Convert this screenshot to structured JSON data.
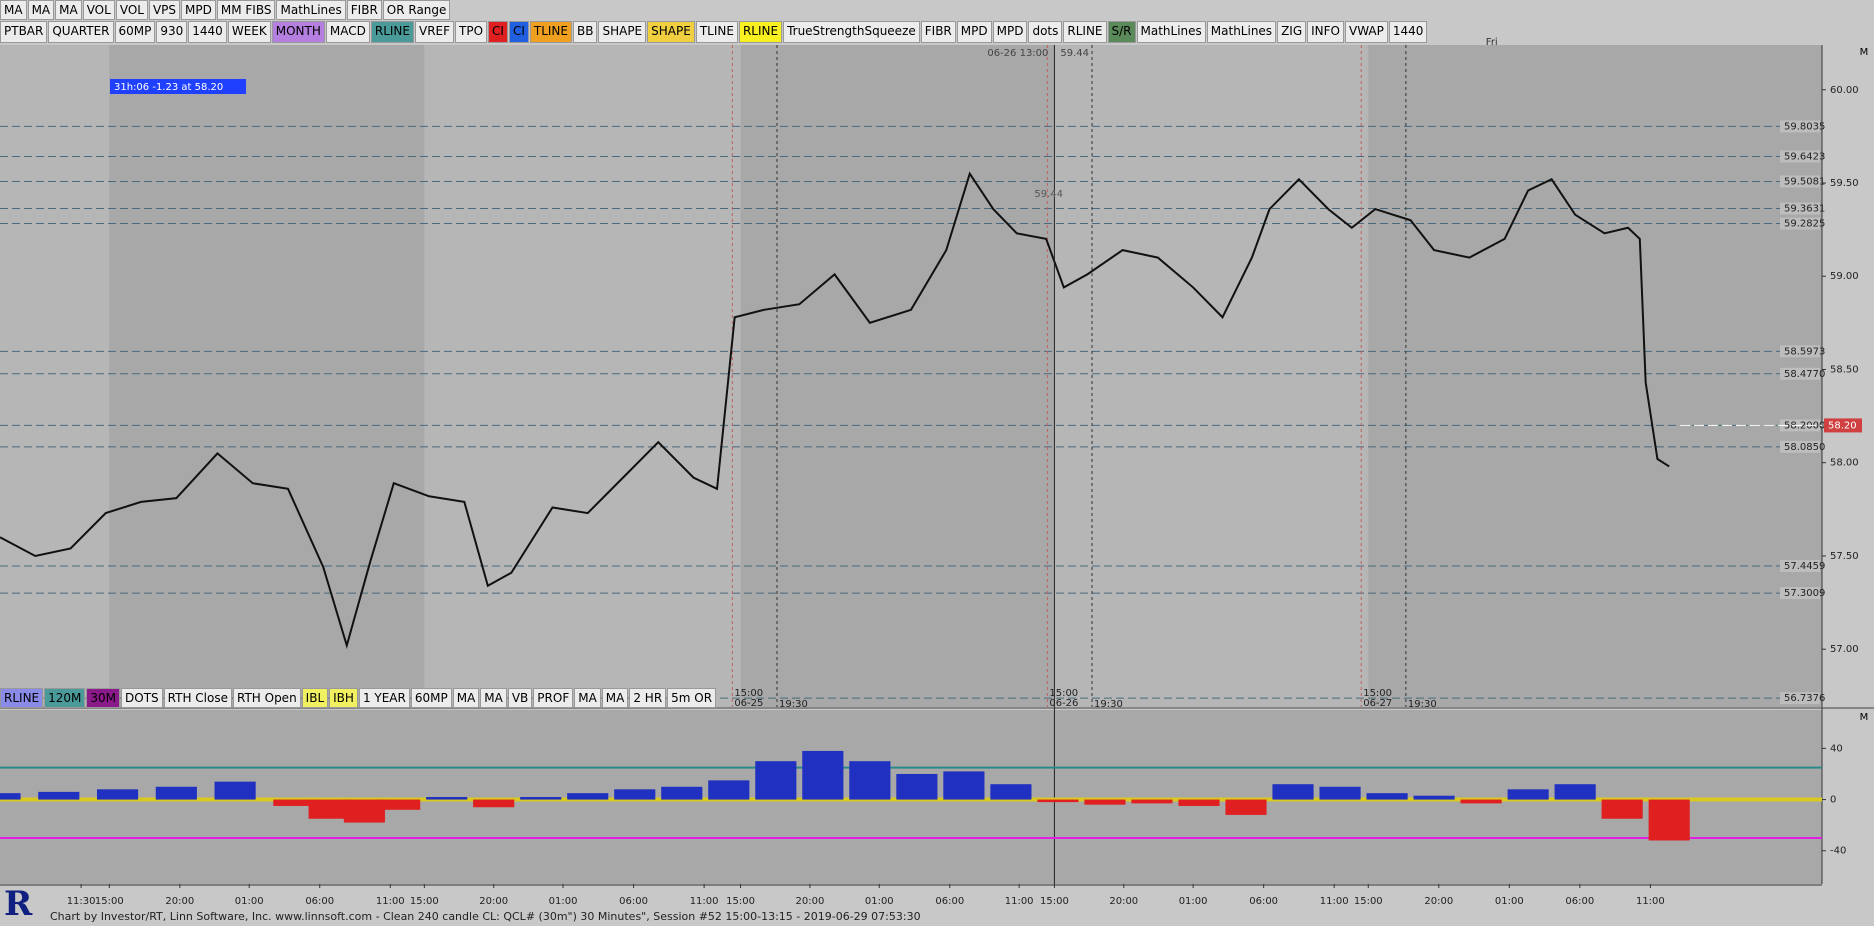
{
  "toolbar_top": [
    "MA",
    "MA",
    "MA",
    "VOL",
    "VOL",
    "VPS",
    "MPD",
    "MM FIBS",
    "MathLines",
    "FIBR",
    "OR Range"
  ],
  "toolbar_main": [
    {
      "label": "PTBAR"
    },
    {
      "label": "QUARTER"
    },
    {
      "label": "60MP"
    },
    {
      "label": "930"
    },
    {
      "label": "1440"
    },
    {
      "label": "WEEK"
    },
    {
      "label": "MONTH",
      "bg": "#b57fe0"
    },
    {
      "label": "MACD"
    },
    {
      "label": "RLINE",
      "bg": "#4a9a9a"
    },
    {
      "label": "VREF"
    },
    {
      "label": "TPO"
    },
    {
      "label": "CI",
      "bg": "#e02020"
    },
    {
      "label": "CI",
      "bg": "#2060e0"
    },
    {
      "label": "TLINE",
      "bg": "#f0a020"
    },
    {
      "label": "BB"
    },
    {
      "label": "SHAPE"
    },
    {
      "label": "SHAPE",
      "bg": "#f0d040"
    },
    {
      "label": "TLINE"
    },
    {
      "label": "RLINE",
      "bg": "#f8f020"
    },
    {
      "label": "TrueStrengthSqueeze"
    },
    {
      "label": "FIBR"
    },
    {
      "label": "MPD"
    },
    {
      "label": "MPD"
    },
    {
      "label": "dots"
    },
    {
      "label": "RLINE"
    },
    {
      "label": "S/R",
      "bg": "#5a8a5a"
    },
    {
      "label": "MathLines"
    },
    {
      "label": "MathLines"
    },
    {
      "label": "ZIG"
    },
    {
      "label": "INFO"
    },
    {
      "label": "VWAP"
    },
    {
      "label": "1440"
    }
  ],
  "toolbar_bottom": [
    {
      "label": "RLINE",
      "bg": "#8a8ae8"
    },
    {
      "label": "120M",
      "bg": "#4a9a9a"
    },
    {
      "label": "30M",
      "bg": "#8a1a8a"
    },
    {
      "label": "DOTS"
    },
    {
      "label": "RTH Close"
    },
    {
      "label": "RTH Open"
    },
    {
      "label": "IBL",
      "bg": "#f0f060"
    },
    {
      "label": "IBH",
      "bg": "#f0f060"
    },
    {
      "label": "1 YEAR"
    },
    {
      "label": "60MP"
    },
    {
      "label": "MA"
    },
    {
      "label": "MA"
    },
    {
      "label": "VB"
    },
    {
      "label": "PROF"
    },
    {
      "label": "MA"
    },
    {
      "label": "MA"
    },
    {
      "label": "2 HR"
    },
    {
      "label": "5m OR"
    }
  ],
  "info_box": "31h:06  -1.23 at 58.20",
  "pane_label": "M",
  "footer": "Chart by Investor/RT, Linn Software, Inc. www.linnsoft.com - Clean 240 candle CL: QCL# (30m\") 30 Minutes\", Session #52 15:00-13:15 - 2019-06-29 07:53:30",
  "chart_data": [
    {
      "type": "line",
      "color": "#111111",
      "x": [
        0,
        3,
        6,
        9,
        12,
        15,
        18.5,
        21.5,
        24.5,
        27.5,
        29.5,
        31.5,
        33.5,
        36.5,
        39.5,
        41.5,
        43.5,
        47,
        50,
        53,
        56,
        59,
        61,
        62.5,
        65,
        68,
        71,
        74,
        77.5,
        80.5,
        82.5,
        84.5,
        86.5,
        89,
        90.5,
        92.5,
        95.5,
        98.5,
        101.5,
        104,
        106.5,
        108,
        110.5,
        113,
        115,
        117,
        120,
        122,
        125,
        128,
        130,
        132,
        134,
        136.5,
        138.5,
        139.5,
        140,
        141,
        142
      ],
      "values": [
        57.6,
        57.5,
        57.54,
        57.73,
        57.79,
        57.81,
        58.05,
        57.89,
        57.86,
        57.44,
        57.02,
        57.47,
        57.89,
        57.82,
        57.79,
        57.34,
        57.41,
        57.76,
        57.73,
        57.92,
        58.11,
        57.92,
        57.86,
        58.78,
        58.82,
        58.85,
        59.01,
        58.75,
        58.82,
        59.14,
        59.55,
        59.36,
        59.23,
        59.2,
        58.94,
        59.01,
        59.14,
        59.1,
        58.94,
        58.78,
        59.1,
        59.36,
        59.52,
        59.36,
        59.26,
        59.36,
        59.3,
        59.14,
        59.1,
        59.2,
        59.46,
        59.52,
        59.33,
        59.23,
        59.26,
        59.2,
        58.43,
        58.02,
        57.98
      ],
      "xlim": [
        0,
        155
      ],
      "ylim": [
        56.69,
        60.24
      ],
      "yticks": [
        {
          "value": 60,
          "label": "60.00"
        },
        {
          "value": 59.5,
          "label": "59.50"
        },
        {
          "value": 59,
          "label": "59.00"
        },
        {
          "value": 58.5,
          "label": "58.50"
        },
        {
          "value": 58,
          "label": "58.00"
        },
        {
          "value": 57.5,
          "label": "57.50"
        },
        {
          "value": 57,
          "label": "57.00"
        }
      ],
      "levels": [
        59.8035,
        59.6423,
        59.5081,
        59.3631,
        59.2825,
        58.5973,
        {
          "value": 58.477,
          "label": "58.4770"
        },
        {
          "value": 58.2,
          "label": "58.2000"
        },
        {
          "value": 58.085,
          "label": "58.0850"
        },
        57.4459,
        57.3009,
        56.7376
      ],
      "current": {
        "value": 58.2,
        "label": "58.20"
      },
      "crosshair": {
        "x": 89.7,
        "value": 59.44,
        "label": "06-26 13:00"
      },
      "sessions": [
        {
          "x": 62.3,
          "label": "15:00",
          "date": "06-25"
        },
        {
          "x": 66.1,
          "label": "19:30"
        },
        {
          "x": 89.1,
          "label": "15:00",
          "date": "06-26"
        },
        {
          "x": 92.9,
          "label": "19:30"
        },
        {
          "x": 115.8,
          "label": "15:00",
          "date": "06-27"
        },
        {
          "x": 119.6,
          "label": "19:30"
        }
      ],
      "day_label": {
        "x": 126.4,
        "label": "Fri"
      }
    },
    {
      "type": "bar",
      "color_up": "#2030c0",
      "color_down": "#e02020",
      "x": [
        0,
        5,
        10,
        15,
        20,
        25,
        28,
        31,
        34,
        38,
        42,
        46,
        50,
        54,
        58,
        62,
        66,
        70,
        74,
        78,
        82,
        86,
        90,
        94,
        98,
        102,
        106,
        110,
        114,
        118,
        122,
        126,
        130,
        134,
        138,
        142
      ],
      "values": [
        5,
        6,
        8,
        10,
        14,
        -5,
        -15,
        -18,
        -8,
        2,
        -6,
        2,
        5,
        8,
        10,
        15,
        30,
        38,
        30,
        20,
        22,
        12,
        -2,
        -4,
        -3,
        -5,
        -12,
        12,
        10,
        5,
        3,
        -3,
        8,
        12,
        -15,
        -32
      ],
      "xlim": [
        0,
        155
      ],
      "ylim": [
        -66,
        70
      ],
      "yticks": [
        40,
        0,
        -40
      ],
      "xticks": [
        {
          "value": 6.9,
          "label": "11:30"
        },
        {
          "value": 9.3,
          "label": "15:00"
        },
        {
          "value": 15.3,
          "label": "20:00"
        },
        {
          "value": 21.2,
          "label": "01:00"
        },
        {
          "value": 27.2,
          "label": "06:00"
        },
        {
          "value": 33.2,
          "label": "11:00"
        },
        {
          "value": 36.1,
          "label": "15:00"
        },
        {
          "value": 42,
          "label": "20:00"
        },
        {
          "value": 47.9,
          "label": "01:00"
        },
        {
          "value": 53.9,
          "label": "06:00"
        },
        {
          "value": 59.9,
          "label": "11:00"
        },
        {
          "value": 63,
          "label": "15:00"
        },
        {
          "value": 68.9,
          "label": "20:00"
        },
        {
          "value": 74.8,
          "label": "01:00"
        },
        {
          "value": 80.8,
          "label": "06:00"
        },
        {
          "value": 86.7,
          "label": "11:00"
        },
        {
          "value": 89.7,
          "label": "15:00"
        },
        {
          "value": 95.6,
          "label": "20:00"
        },
        {
          "value": 101.5,
          "label": "01:00"
        },
        {
          "value": 107.5,
          "label": "06:00"
        },
        {
          "value": 113.5,
          "label": "11:00"
        },
        {
          "value": 116.4,
          "label": "15:00"
        },
        {
          "value": 122.4,
          "label": "20:00"
        },
        {
          "value": 128.4,
          "label": "01:00"
        },
        {
          "value": 134.4,
          "label": "06:00"
        },
        {
          "value": 140.4,
          "label": "11:00"
        }
      ],
      "reference_lines": [
        25,
        -30
      ]
    }
  ]
}
